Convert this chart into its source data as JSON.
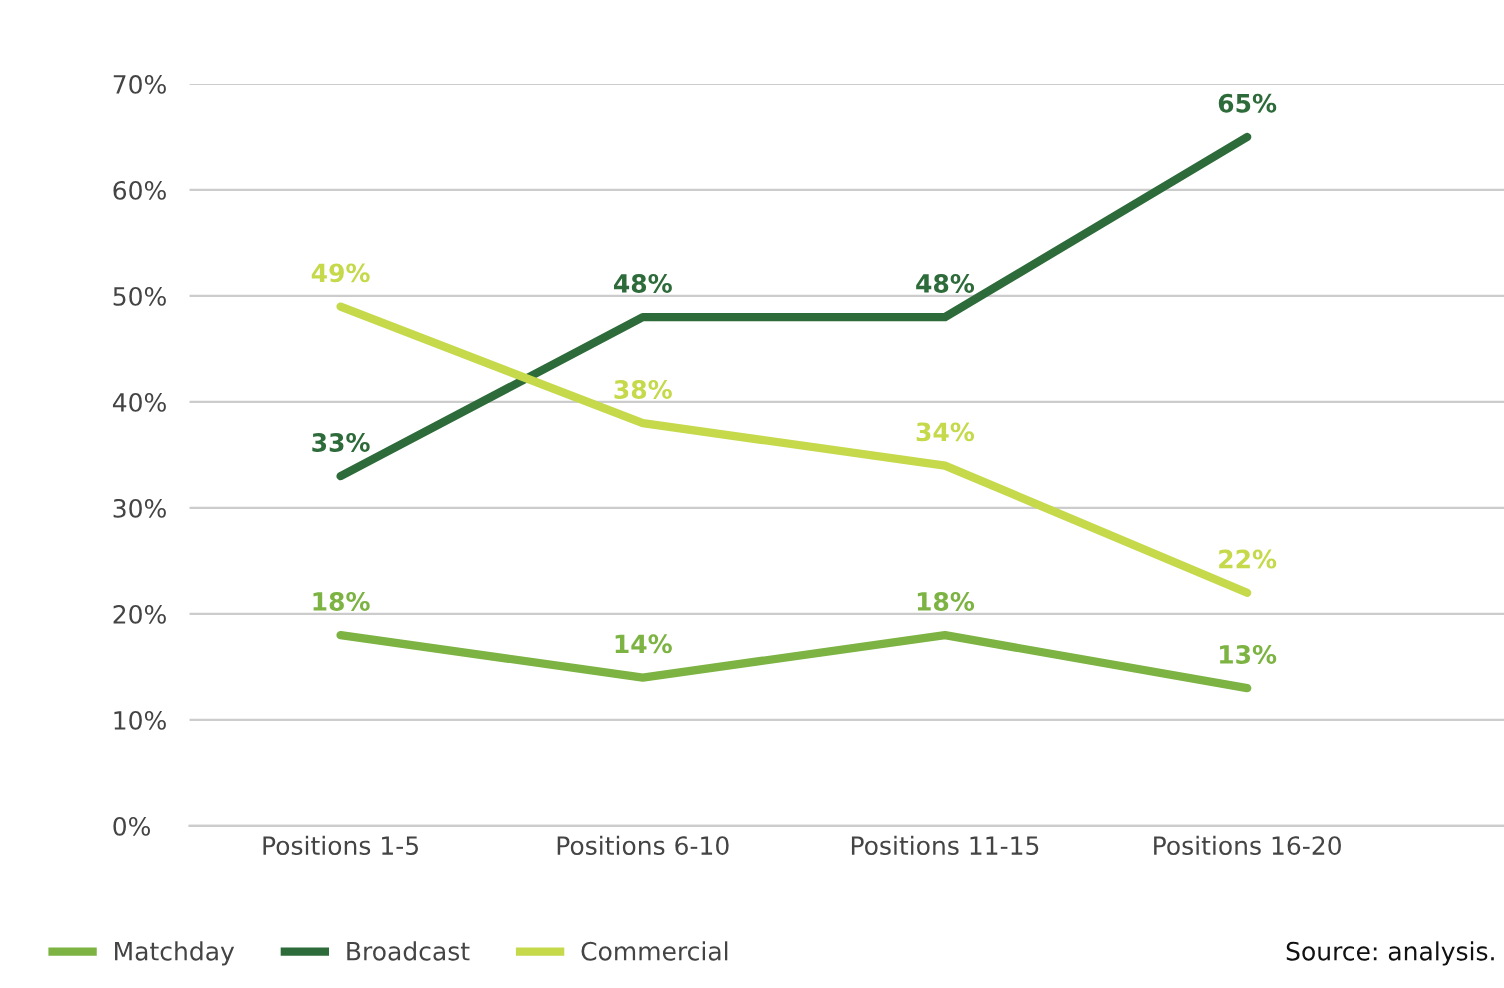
{
  "chart_data": {
    "type": "line",
    "categories": [
      "Positions 1-5",
      "Positions 6-10",
      "Positions 11-15",
      "Positions 16-20"
    ],
    "series": [
      {
        "name": "Matchday",
        "color": "#7cb342",
        "values": [
          18,
          14,
          18,
          13
        ],
        "value_labels": [
          "18%",
          "14%",
          "18%",
          "13%"
        ]
      },
      {
        "name": "Broadcast",
        "color": "#2e6b3a",
        "values": [
          33,
          48,
          48,
          65
        ],
        "value_labels": [
          "33%",
          "48%",
          "48%",
          "65%"
        ]
      },
      {
        "name": "Commercial",
        "color": "#c5d94a",
        "values": [
          49,
          38,
          34,
          22
        ],
        "value_labels": [
          "49%",
          "38%",
          "34%",
          "22%"
        ]
      }
    ],
    "ylim": [
      0,
      70
    ],
    "yticks": [
      {
        "value": 0,
        "label": "0%"
      },
      {
        "value": 10,
        "label": "10%"
      },
      {
        "value": 20,
        "label": "20%"
      },
      {
        "value": 30,
        "label": "30%"
      },
      {
        "value": 40,
        "label": "40%"
      },
      {
        "value": 50,
        "label": "50%"
      },
      {
        "value": 60,
        "label": "60%"
      },
      {
        "value": 70,
        "label": "70%"
      }
    ],
    "grid": "y",
    "legend": "bottom left",
    "marker": "none",
    "line_style": "solid",
    "annotations": [
      "Source: analysis."
    ]
  }
}
